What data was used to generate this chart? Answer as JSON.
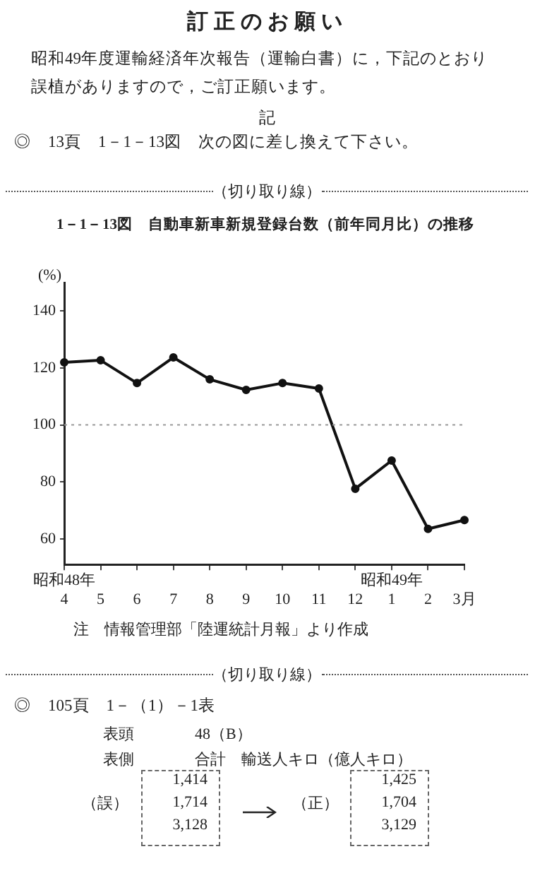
{
  "chart_data": {
    "type": "line",
    "title": "1－1－13図　自動車新車新規登録台数（前年同月比）の推移",
    "ylabel": "(%)",
    "categories": [
      "昭和48年\n4",
      "5",
      "6",
      "7",
      "8",
      "9",
      "10",
      "11",
      "12",
      "昭和49年\n1",
      "2",
      "3月"
    ],
    "series": [
      {
        "color": "#111111",
        "values": [
          122,
          122.7,
          114.7,
          123.7,
          116,
          112.3,
          114.7,
          112.8,
          77.6,
          87.5,
          63.5,
          66.6
        ]
      }
    ],
    "ylim": [
      51,
      150
    ],
    "yticks": [
      60,
      80,
      100,
      120,
      140
    ],
    "ref_lines": [
      {
        "axis": "y",
        "value": 100,
        "color": "#999999",
        "line_style": "dotted"
      }
    ],
    "grid": false,
    "legend": false,
    "marker": "circle",
    "line_style": "solid",
    "annotations": [
      "訂正のお願い",
      "昭和49年度運輸経済年次報告（運輸白書）に，下記のとおり誤植がありますので，ご訂正願います。",
      "記",
      "◎　13頁　1－1－13図　次の図に差し換えて下さい。",
      "（切り取り線）",
      "注　情報管理部「陸運統計月報」より作成",
      "（切り取り線）",
      "◎　105頁　1－（1）－1表",
      "表頭",
      "48（B）",
      "表側",
      "合計　輸送人キロ（億人キロ）",
      "（誤）",
      "1,414",
      "1,714",
      "3,128",
      "（正）",
      "1,425",
      "1,704",
      "3,129"
    ]
  }
}
